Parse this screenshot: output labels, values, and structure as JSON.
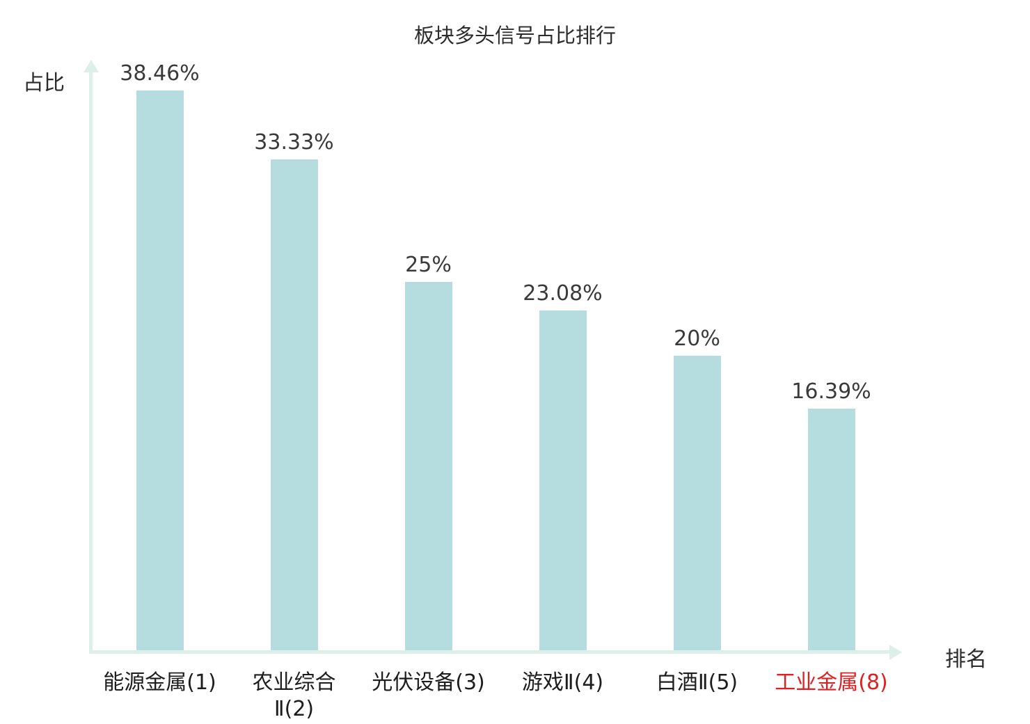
{
  "chart_data": {
    "type": "bar",
    "title": "板块多头信号占比排行",
    "xlabel": "排名",
    "ylabel": "占比",
    "categories": [
      "能源金属(1)",
      "农业综合\nⅡ(2)",
      "光伏设备(3)",
      "游戏Ⅱ(4)",
      "白酒Ⅱ(5)",
      "工业金属(8)"
    ],
    "values": [
      38.46,
      33.33,
      25,
      23.08,
      20,
      16.39
    ],
    "value_labels": [
      "38.46%",
      "33.33%",
      "25%",
      "23.08%",
      "20%",
      "16.39%"
    ],
    "highlight_index": 5,
    "highlight_color": "#e02020",
    "bar_color": "#b5dcdf",
    "axis_color": "#dcefe9",
    "ylim": [
      0,
      40
    ],
    "grid": "off",
    "legend": "none"
  }
}
